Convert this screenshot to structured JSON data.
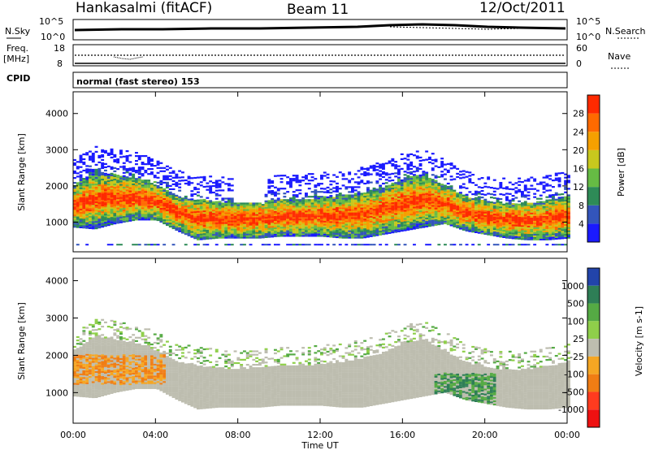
{
  "header": {
    "station": "Hankasalmi (fitACF)",
    "beam": "Beam 11",
    "date": "12/Oct/2011"
  },
  "panels": {
    "nsky_label": "N.Sky",
    "nsky_top": "10^5",
    "nsky_bottom": "10^0",
    "nsearch_label": "N.Search",
    "nsearch_top": "10^5",
    "nsearch_bottom": "10^0",
    "freq_label_1": "Freq.",
    "freq_label_2": "[MHz]",
    "freq_top": "18",
    "freq_bottom": "8",
    "nave_label": "Nave",
    "nave_top": "60",
    "nave_bottom": "0",
    "cpid_label": "CPID",
    "cpid_text": "normal (fast stereo) 153"
  },
  "chart_data": [
    {
      "type": "heatmap",
      "name": "power",
      "ylabel": "Slant Range [km]",
      "ylim": [
        180,
        4600
      ],
      "yticks": [
        "1000",
        "2000",
        "3000",
        "4000"
      ],
      "colorbar_label": "Power [dB]",
      "colorbar_ticks": [
        "4",
        "8",
        "12",
        "16",
        "20",
        "24",
        "28"
      ],
      "colorbar_colors": [
        "#1a1aff",
        "#3355bb",
        "#2e8b57",
        "#66bb44",
        "#c8c81e",
        "#f5a000",
        "#ff6a00",
        "#ff2a00"
      ],
      "bands": [
        {
          "x": [
            0,
            1,
            2,
            3,
            4,
            5,
            6,
            7,
            8,
            9,
            10,
            11,
            12,
            13,
            14,
            15,
            16,
            17,
            18,
            19,
            20,
            21,
            22,
            23,
            24
          ],
          "lo": [
            1100,
            1050,
            1200,
            1300,
            1300,
            1000,
            750,
            800,
            800,
            800,
            850,
            850,
            850,
            800,
            800,
            900,
            1000,
            1100,
            1200,
            1000,
            900,
            800,
            750,
            750,
            800
          ],
          "hi": [
            1800,
            2200,
            2100,
            2000,
            1800,
            1500,
            1400,
            1350,
            1300,
            1350,
            1400,
            1400,
            1450,
            1500,
            1600,
            1750,
            2000,
            2100,
            1800,
            1500,
            1350,
            1300,
            1300,
            1400,
            1500
          ]
        }
      ]
    },
    {
      "type": "heatmap",
      "name": "velocity",
      "ylabel": "Slant Range [km]",
      "xlabel": "Time UT",
      "ylim": [
        180,
        4600
      ],
      "yticks": [
        "1000",
        "2000",
        "3000",
        "4000"
      ],
      "xticks": [
        "00:00",
        "04:00",
        "08:00",
        "12:00",
        "16:00",
        "20:00",
        "00:00"
      ],
      "colorbar_label": "Velocity [m s-1]",
      "colorbar_ticks": [
        "1000",
        "500",
        "100",
        "25",
        "-25",
        "-100",
        "-500",
        "-1000"
      ],
      "colorbar_colors": [
        "#2244aa",
        "#2e7e56",
        "#55aa44",
        "#8fcf4a",
        "#bdbdaf",
        "#f5a623",
        "#f07d14",
        "#ff3b1f",
        "#ee1111"
      ]
    }
  ]
}
